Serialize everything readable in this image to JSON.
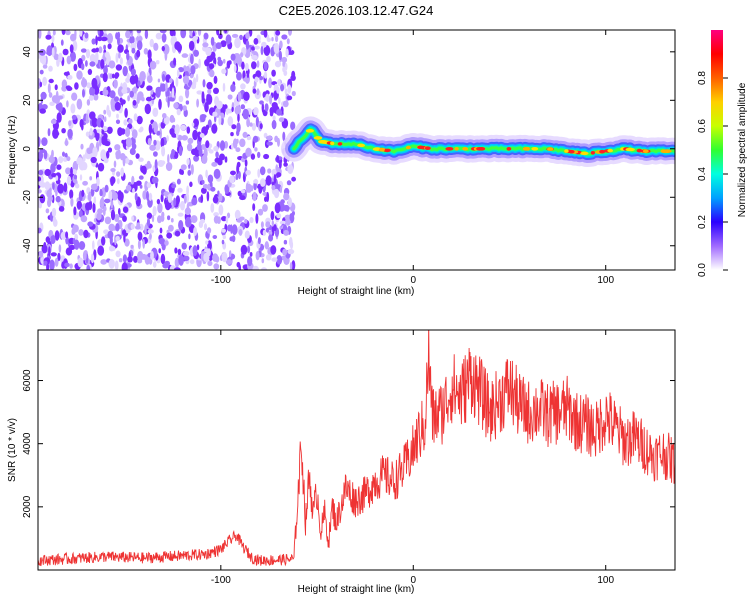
{
  "figure": {
    "title": "C2E5.2026.103.12.47.G24"
  },
  "chart_data": [
    {
      "type": "heatmap",
      "xlabel": "Height of straight line (km)",
      "ylabel": "Frequency (Hz)",
      "xlim": [
        -195,
        136
      ],
      "ylim": [
        -50,
        49
      ],
      "xticks": [
        -100,
        0,
        100
      ],
      "yticks": [
        -40,
        -20,
        0,
        20,
        40
      ],
      "colorbar": {
        "label": "Normalized spectral amplitude",
        "range": [
          0,
          1
        ],
        "ticks": [
          "0.0",
          "0.2",
          "0.4",
          "0.6",
          "0.8"
        ],
        "colors": [
          "#ffffff",
          "#a06aff",
          "#2a00ff",
          "#00a0ff",
          "#00ffe0",
          "#30ff30",
          "#c8ff00",
          "#ffd000",
          "#ff6000",
          "#ff0000",
          "#ff0080"
        ]
      },
      "noise_region": {
        "x_range": [
          -195,
          -62
        ],
        "colors": [
          "#7a2cff",
          "#9a6aff",
          "#c2a6ff",
          "#e2d6ff"
        ]
      },
      "signal_trace": {
        "x_range": [
          -62,
          136
        ],
        "points": [
          [
            -62,
            0
          ],
          [
            -58,
            4
          ],
          [
            -53,
            8
          ],
          [
            -48,
            3
          ],
          [
            -40,
            2
          ],
          [
            -30,
            2
          ],
          [
            -20,
            0
          ],
          [
            -10,
            -1
          ],
          [
            0,
            1
          ],
          [
            10,
            0
          ],
          [
            30,
            0
          ],
          [
            50,
            0
          ],
          [
            70,
            0
          ],
          [
            80,
            -1
          ],
          [
            90,
            -2
          ],
          [
            100,
            -1
          ],
          [
            110,
            0
          ],
          [
            120,
            -1
          ],
          [
            136,
            -1
          ]
        ]
      }
    },
    {
      "type": "line",
      "xlabel": "Height of straight line (km)",
      "ylabel": "SNR (10 * v/v)",
      "xlim": [
        -195,
        136
      ],
      "ylim": [
        0,
        7600
      ],
      "xticks": [
        -100,
        0,
        100
      ],
      "yticks": [
        2000,
        4000,
        6000
      ],
      "color": "#ee3333",
      "series": [
        {
          "x": [
            -195,
            -180,
            -160,
            -140,
            -120,
            -108,
            -100,
            -96,
            -92,
            -88,
            -84,
            -80,
            -70,
            -62,
            -60,
            -58,
            -56,
            -54,
            -52,
            -50,
            -48,
            -46,
            -44,
            -42,
            -40,
            -35,
            -30,
            -25,
            -20,
            -15,
            -10,
            -5,
            0,
            3,
            6,
            8,
            10,
            15,
            20,
            25,
            30,
            35,
            40,
            45,
            50,
            55,
            60,
            65,
            70,
            75,
            80,
            85,
            90,
            95,
            100,
            105,
            110,
            115,
            120,
            125,
            130,
            136
          ],
          "y": [
            300,
            350,
            420,
            380,
            450,
            500,
            650,
            900,
            1100,
            700,
            400,
            300,
            320,
            350,
            2300,
            4000,
            1500,
            3000,
            1800,
            2500,
            1200,
            1800,
            900,
            2000,
            1500,
            2600,
            2200,
            2400,
            2800,
            3000,
            2800,
            3200,
            3800,
            4300,
            4600,
            6800,
            4800,
            5000,
            5800,
            5500,
            6200,
            5600,
            5000,
            5400,
            5800,
            5200,
            5000,
            5100,
            4900,
            5000,
            5100,
            4700,
            4600,
            4400,
            4900,
            4500,
            4100,
            4200,
            3900,
            3600,
            3700,
            3400
          ]
        }
      ]
    }
  ]
}
